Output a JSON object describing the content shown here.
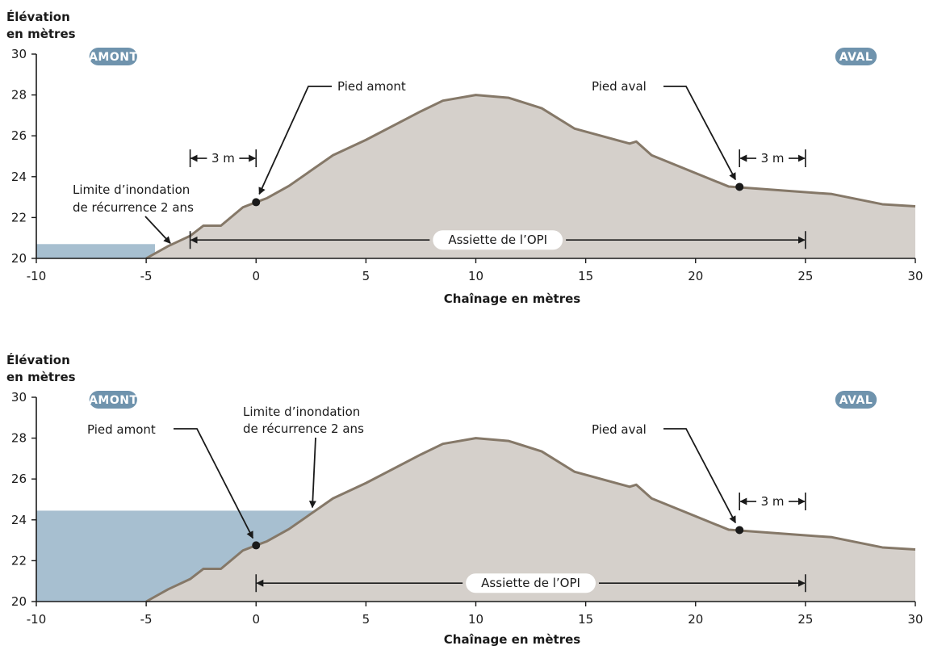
{
  "colors": {
    "ground_fill": "#d5d0cb",
    "ground_line": "#857868",
    "water": "#a7bfd0",
    "badge": "#6f93ad",
    "axis": "#1a1a1a"
  },
  "x_axis": {
    "min": -10,
    "max": 30,
    "ticks": [
      -10,
      -5,
      0,
      5,
      10,
      15,
      20,
      25,
      30
    ],
    "label": "Chaînage en mètres"
  },
  "y_axis": {
    "min": 20,
    "max": 30,
    "ticks": [
      20,
      22,
      24,
      26,
      28,
      30
    ],
    "label_line1": "Élévation",
    "label_line2": "en mètres"
  },
  "badges": {
    "upstream": "AMONT",
    "downstream": "AVAL"
  },
  "profile": [
    [
      -5,
      20
    ],
    [
      -4,
      20.6
    ],
    [
      -3,
      21.1
    ],
    [
      -2.4,
      21.6
    ],
    [
      -1.6,
      21.6
    ],
    [
      -0.6,
      22.5
    ],
    [
      0,
      22.75
    ],
    [
      0.5,
      22.95
    ],
    [
      1.5,
      23.55
    ],
    [
      3.5,
      25.05
    ],
    [
      5,
      25.8
    ],
    [
      7.5,
      27.2
    ],
    [
      8.5,
      27.72
    ],
    [
      10,
      28
    ],
    [
      11.5,
      27.86
    ],
    [
      13,
      27.35
    ],
    [
      14.5,
      26.35
    ],
    [
      17,
      25.62
    ],
    [
      17.3,
      25.72
    ],
    [
      18,
      25.05
    ],
    [
      21.5,
      23.52
    ],
    [
      23,
      23.4
    ],
    [
      26.2,
      23.15
    ],
    [
      28.5,
      22.65
    ],
    [
      30,
      22.55
    ]
  ],
  "diagrams": [
    {
      "water": {
        "x_min": -10,
        "x_end": -4.6,
        "level": 20.7
      },
      "flood_label": [
        "Limite d’inondation",
        "de récurrence 2 ans"
      ],
      "pied_amont": {
        "label": "Pied amont",
        "x": 0,
        "y": 22.75
      },
      "pied_aval": {
        "label": "Pied aval",
        "x": 22,
        "y": 23.5
      },
      "offset_upstream": {
        "label": "3 m",
        "x1": -3,
        "x2": 0,
        "y": 24.9
      },
      "offset_downstream": {
        "label": "3 m",
        "x1": 22,
        "x2": 25,
        "y": 24.9
      },
      "assiette": {
        "label": "Assiette de l’OPI",
        "x1": -3,
        "x2": 25,
        "y": 20.9
      }
    },
    {
      "water": {
        "x_min": -10,
        "x_end": 2.6,
        "level": 24.45
      },
      "flood_label": [
        "Limite d’inondation",
        "de récurrence 2 ans"
      ],
      "pied_amont": {
        "label": "Pied amont",
        "x": 0,
        "y": 22.75
      },
      "pied_aval": {
        "label": "Pied aval",
        "x": 22,
        "y": 23.5
      },
      "offset_downstream": {
        "label": "3 m",
        "x1": 22,
        "x2": 25,
        "y": 24.9
      },
      "assiette": {
        "label": "Assiette de l’OPI",
        "x1": 0,
        "x2": 25,
        "y": 20.9
      }
    }
  ]
}
